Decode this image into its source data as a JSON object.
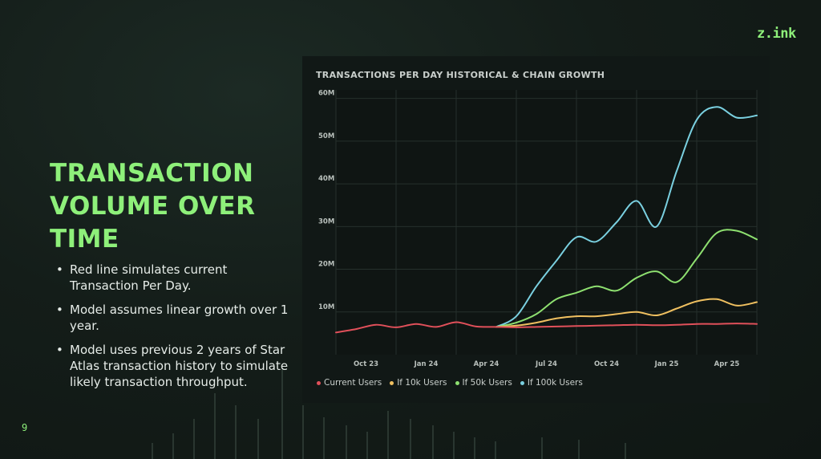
{
  "brand": {
    "logo": "z.ink"
  },
  "slide": {
    "title_lines": [
      "TRANSACTION",
      "VOLUME OVER",
      "TIME"
    ],
    "bullets": [
      "Red line simulates current Transaction Per Day.",
      "Model assumes linear growth over 1 year.",
      "Model uses previous 2 years of Star Atlas transaction history to simulate likely transaction throughput."
    ],
    "page_number": "9"
  },
  "chart_data": {
    "type": "line",
    "title": "TRANSACTIONS PER DAY HISTORICAL & CHAIN GROWTH",
    "x_tick_labels": [
      "Oct 23",
      "Jan 24",
      "Apr 24",
      "Jul 24",
      "Oct 24",
      "Jan 25",
      "Apr 25"
    ],
    "xlim": [
      0,
      21
    ],
    "ylim": [
      0,
      62
    ],
    "y_ticks": [
      10,
      20,
      30,
      40,
      50,
      60
    ],
    "y_tick_labels": [
      "10M",
      "20M",
      "30M",
      "40M",
      "50M",
      "60M"
    ],
    "ylabel": "",
    "xlabel": "",
    "grid": true,
    "legend_position": "bottom-left",
    "x": [
      0,
      1,
      2,
      3,
      4,
      5,
      6,
      7,
      8,
      9,
      10,
      11,
      12,
      13,
      14,
      15,
      16,
      17,
      18,
      19,
      20,
      21
    ],
    "series": [
      {
        "name": "Current Users",
        "color": "#e0505a",
        "values": [
          5.2,
          6.0,
          7.0,
          6.4,
          7.2,
          6.5,
          7.6,
          6.6,
          6.5,
          6.4,
          6.5,
          6.6,
          6.7,
          6.8,
          6.9,
          7.0,
          6.9,
          7.0,
          7.2,
          7.2,
          7.3,
          7.2
        ]
      },
      {
        "name": "If 10k Users",
        "color": "#f0c060",
        "values": [
          null,
          null,
          null,
          null,
          null,
          null,
          null,
          null,
          6.5,
          6.8,
          7.5,
          8.5,
          9.0,
          9.0,
          9.5,
          10.0,
          9.2,
          10.8,
          12.5,
          13.0,
          11.5,
          12.3
        ]
      },
      {
        "name": "If 50k Users",
        "color": "#8ee070",
        "values": [
          null,
          null,
          null,
          null,
          null,
          null,
          null,
          null,
          6.5,
          7.5,
          9.5,
          13.0,
          14.5,
          16.0,
          15.0,
          18.0,
          19.5,
          17.0,
          22.5,
          28.5,
          29.0,
          27.0
        ]
      },
      {
        "name": "If 100k Users",
        "color": "#7ad0e0",
        "values": [
          null,
          null,
          null,
          null,
          null,
          null,
          null,
          null,
          6.5,
          9.0,
          16.0,
          22.0,
          27.5,
          26.5,
          31.0,
          36.0,
          30.0,
          43.0,
          55.0,
          58.0,
          55.5,
          56.0
        ]
      }
    ]
  }
}
